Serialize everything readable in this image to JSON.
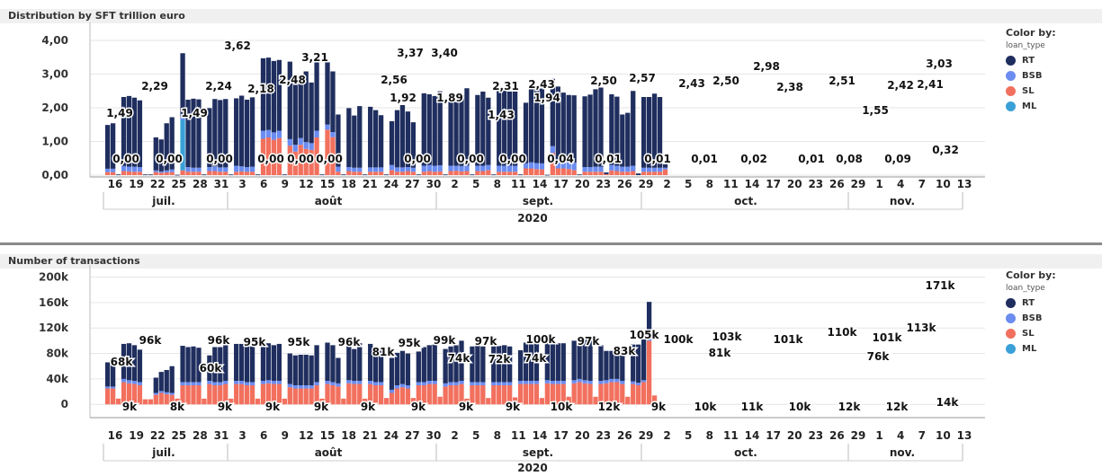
{
  "legend": {
    "title": "Color by:",
    "subtitle": "loan_type",
    "items": [
      {
        "name": "RT",
        "color": "#1f2e5e"
      },
      {
        "name": "BSB",
        "color": "#6b8cf0"
      },
      {
        "name": "SL",
        "color": "#f2705e"
      },
      {
        "name": "ML",
        "color": "#3aa0d8"
      }
    ]
  },
  "chart_data": [
    {
      "type": "bar",
      "title": "Distribution by SFT trillion euro",
      "stacked": true,
      "ylim": [
        0,
        4.4
      ],
      "yticks": [
        "4,00",
        "3,00",
        "2,00",
        "1,00",
        "0,00"
      ],
      "ytick_values": [
        4,
        3,
        2,
        1,
        0
      ],
      "grid": true,
      "legend_position": "right",
      "xticks": [
        "16",
        "19",
        "22",
        "25",
        "28",
        "31",
        "3",
        "6",
        "9",
        "12",
        "15",
        "18",
        "21",
        "24",
        "27",
        "30",
        "2",
        "5",
        "8",
        "11",
        "14",
        "17",
        "20",
        "23",
        "26",
        "29",
        "2",
        "5",
        "8",
        "11",
        "14",
        "17",
        "20",
        "23",
        "26",
        "29",
        "1",
        "4",
        "7",
        "10",
        "13"
      ],
      "months": [
        "juil.",
        "août",
        "sept.",
        "oct.",
        "nov."
      ],
      "year": "2020",
      "annotations": [
        "1,49",
        "0,00",
        "2,29",
        "0,00",
        "1,49",
        "2,24",
        "0,00",
        "3,62",
        "2,18",
        "0,00",
        "2,48",
        "0,00",
        "3,21",
        "0,00",
        "2,56",
        "1,92",
        "3,37",
        "0,00",
        "3,40",
        "1,89",
        "0,00",
        "2,31",
        "1,43",
        "0,00",
        "2,43",
        "1,94",
        "0,04",
        "2,50",
        "0,01",
        "2,57",
        "0,01",
        "2,43",
        "0,01",
        "2,50",
        "0,02",
        "2,98",
        "2,38",
        "0,01",
        "2,51",
        "0,08",
        "1,55",
        "2,42",
        "0,09",
        "2,41",
        "3,03",
        "0,32"
      ],
      "series": [
        {
          "name": "RT",
          "values": [
            1.3,
            1.35,
            0.02,
            2.05,
            2.1,
            2.05,
            1.98,
            0.02,
            0.02,
            0.98,
            0.95,
            1.4,
            1.55,
            0.01,
            1.88,
            2.0,
            2.05,
            2.03,
            0.02,
            1.75,
            2.0,
            2.0,
            2.03,
            0.02,
            2.0,
            2.1,
            2.0,
            2.06,
            0.02,
            2.15,
            2.15,
            2.12,
            2.1,
            0.02,
            2.3,
            1.95,
            1.85,
            2.1,
            1.8,
            2.03,
            0.02,
            1.85,
            1.8,
            1.55,
            0.02,
            1.75,
            1.55,
            1.83,
            0.02,
            1.8,
            1.7,
            1.55,
            0.02,
            1.3,
            1.7,
            1.85,
            1.65,
            1.35,
            0.02,
            2.15,
            2.1,
            2.07,
            2.2,
            0.02,
            2.1,
            2.0,
            2.1,
            2.3,
            0.02,
            2.1,
            2.2,
            2.0,
            0.02,
            2.25,
            2.25,
            2.2,
            2.2,
            0.02,
            1.8,
            2.25,
            2.2,
            2.22,
            0.01,
            2.0,
            2.23,
            2.05,
            2.0,
            2.0,
            0.02,
            2.1,
            2.15,
            2.3,
            2.35,
            0.05,
            2.1,
            2.05,
            1.55,
            1.6,
            2.22,
            0.05,
            2.1,
            2.1,
            2.2,
            2.1,
            0.1
          ]
        },
        {
          "name": "BSB",
          "values": [
            0.1,
            0.1,
            0.0,
            0.15,
            0.14,
            0.15,
            0.14,
            0.0,
            0.0,
            0.05,
            0.04,
            0.06,
            0.08,
            0.0,
            0.1,
            0.14,
            0.12,
            0.12,
            0.0,
            0.12,
            0.14,
            0.13,
            0.13,
            0.0,
            0.18,
            0.15,
            0.14,
            0.15,
            0.0,
            0.24,
            0.22,
            0.22,
            0.22,
            0.0,
            0.2,
            0.2,
            0.2,
            0.2,
            0.2,
            0.2,
            0.0,
            0.15,
            0.15,
            0.15,
            0.0,
            0.12,
            0.12,
            0.12,
            0.0,
            0.13,
            0.13,
            0.13,
            0.0,
            0.15,
            0.13,
            0.13,
            0.12,
            0.12,
            0.0,
            0.18,
            0.18,
            0.18,
            0.18,
            0.0,
            0.16,
            0.15,
            0.16,
            0.16,
            0.0,
            0.16,
            0.16,
            0.15,
            0.0,
            0.18,
            0.18,
            0.18,
            0.18,
            0.0,
            0.15,
            0.18,
            0.18,
            0.18,
            0.0,
            0.2,
            0.2,
            0.2,
            0.2,
            0.22,
            0.0,
            0.14,
            0.14,
            0.15,
            0.15,
            0.0,
            0.16,
            0.16,
            0.15,
            0.15,
            0.16,
            0.0,
            0.12,
            0.12,
            0.12,
            0.12,
            0.05
          ]
        },
        {
          "name": "SL",
          "values": [
            0.09,
            0.09,
            0.0,
            0.12,
            0.11,
            0.1,
            0.1,
            0.0,
            0.0,
            0.09,
            0.07,
            0.08,
            0.09,
            0.0,
            0.14,
            0.1,
            0.1,
            0.1,
            0.0,
            0.12,
            0.12,
            0.1,
            0.1,
            0.0,
            0.1,
            0.11,
            0.1,
            0.1,
            0.0,
            1.08,
            1.12,
            1.05,
            1.1,
            0.0,
            0.87,
            0.7,
            0.9,
            0.78,
            0.75,
            1.12,
            0.0,
            1.35,
            1.13,
            0.1,
            0.0,
            0.12,
            0.1,
            0.1,
            0.0,
            0.1,
            0.1,
            0.1,
            0.0,
            0.15,
            0.1,
            0.1,
            0.12,
            0.1,
            0.0,
            0.1,
            0.12,
            0.1,
            0.11,
            0.0,
            0.12,
            0.13,
            0.11,
            0.12,
            0.0,
            0.12,
            0.12,
            0.15,
            0.0,
            0.1,
            0.1,
            0.1,
            0.1,
            0.0,
            0.2,
            0.2,
            0.18,
            0.17,
            0.0,
            0.66,
            0.2,
            0.2,
            0.18,
            0.15,
            0.0,
            0.1,
            0.1,
            0.1,
            0.1,
            0.03,
            0.14,
            0.12,
            0.1,
            0.1,
            0.12,
            0.0,
            0.1,
            0.1,
            0.1,
            0.1,
            0.17
          ]
        },
        {
          "name": "ML",
          "values": [
            0,
            0,
            0,
            0,
            0,
            0,
            0,
            0,
            0,
            0,
            0,
            0,
            0,
            0,
            1.5,
            0,
            0,
            0,
            0,
            0,
            0,
            0,
            0,
            0,
            0,
            0,
            0,
            0,
            0,
            0,
            0,
            0,
            0,
            0,
            0,
            0,
            0,
            0,
            0,
            0,
            0,
            0,
            0,
            0,
            0,
            0,
            0,
            0,
            0,
            0,
            0,
            0,
            0,
            0,
            0,
            0,
            0,
            0,
            0,
            0,
            0,
            0,
            0,
            0,
            0,
            0,
            0,
            0,
            0,
            0,
            0,
            0,
            0,
            0,
            0,
            0,
            0,
            0,
            0,
            0,
            0,
            0,
            0,
            0,
            0,
            0,
            0,
            0,
            0,
            0,
            0,
            0,
            0,
            0,
            0,
            0,
            0,
            0,
            0,
            0,
            0,
            0,
            0,
            0,
            0,
            0
          ]
        }
      ]
    },
    {
      "type": "bar",
      "title": "Number of transactions",
      "stacked": true,
      "ylim": [
        -18000,
        212000
      ],
      "yticks": [
        "200k",
        "160k",
        "120k",
        "80k",
        "40k",
        "0"
      ],
      "ytick_values": [
        200000,
        160000,
        120000,
        80000,
        40000,
        0
      ],
      "grid": true,
      "legend_position": "right",
      "xticks": [
        "16",
        "19",
        "22",
        "25",
        "28",
        "31",
        "3",
        "6",
        "9",
        "12",
        "15",
        "18",
        "21",
        "24",
        "27",
        "30",
        "2",
        "5",
        "8",
        "11",
        "14",
        "17",
        "20",
        "23",
        "26",
        "29",
        "2",
        "5",
        "8",
        "11",
        "14",
        "17",
        "20",
        "23",
        "26",
        "29",
        "1",
        "4",
        "7",
        "10",
        "13"
      ],
      "months": [
        "juil.",
        "août",
        "sept.",
        "oct.",
        "nov."
      ],
      "year": "2020",
      "annotations": [
        "68k",
        "9k",
        "96k",
        "8k",
        "60k",
        "96k",
        "9k",
        "95k",
        "9k",
        "95k",
        "9k",
        "96k",
        "9k",
        "81k",
        "95k",
        "9k",
        "99k",
        "74k",
        "9k",
        "97k",
        "72k",
        "9k",
        "74k",
        "100k",
        "10k",
        "97k",
        "12k",
        "83k",
        "105k",
        "9k",
        "100k",
        "10k",
        "81k",
        "103k",
        "11k",
        "101k",
        "10k",
        "110k",
        "12k",
        "76k",
        "101k",
        "12k",
        "113k",
        "171k",
        "14k"
      ],
      "series": [
        {
          "name": "RT",
          "values": [
            38000,
            40000,
            0,
            55000,
            58000,
            56000,
            51000,
            0,
            0,
            24000,
            30000,
            35000,
            42000,
            0,
            57000,
            55000,
            56000,
            54000,
            0,
            40000,
            55000,
            55000,
            56000,
            0,
            58000,
            58000,
            57000,
            56000,
            0,
            57000,
            58000,
            56000,
            58000,
            0,
            48000,
            47000,
            48000,
            48000,
            47000,
            58000,
            0,
            60000,
            58000,
            40000,
            0,
            58000,
            50000,
            59000,
            0,
            58000,
            51000,
            53000,
            0,
            50000,
            51000,
            52000,
            50000,
            0,
            48000,
            55000,
            56000,
            57000,
            0,
            54000,
            56000,
            59000,
            63000,
            0,
            56000,
            57000,
            56000,
            0,
            56000,
            57000,
            58000,
            56000,
            0,
            48000,
            60000,
            60000,
            61000,
            0,
            58000,
            62000,
            59000,
            59000,
            0,
            62000,
            64000,
            65000,
            67000,
            0,
            56000,
            46000,
            44000,
            46000,
            50000,
            0,
            58000,
            60000,
            64000,
            58000,
            0
          ]
        },
        {
          "name": "BSB",
          "values": [
            3000,
            3000,
            0,
            5000,
            5000,
            5000,
            5000,
            0,
            0,
            3000,
            3000,
            3000,
            3000,
            0,
            5000,
            5000,
            5000,
            5000,
            0,
            5000,
            5000,
            5000,
            5000,
            0,
            5000,
            5000,
            5000,
            5000,
            0,
            5000,
            5000,
            5000,
            5000,
            0,
            5000,
            5000,
            5000,
            5000,
            5000,
            5000,
            0,
            5000,
            5000,
            5000,
            0,
            5000,
            5000,
            5000,
            0,
            5000,
            5000,
            5000,
            0,
            5000,
            5000,
            5000,
            5000,
            0,
            5000,
            5000,
            5000,
            5000,
            0,
            5000,
            5000,
            5000,
            5000,
            0,
            5000,
            5000,
            5000,
            0,
            5000,
            5000,
            5000,
            5000,
            0,
            5000,
            5000,
            5000,
            5000,
            0,
            5000,
            5000,
            5000,
            5000,
            0,
            5000,
            5000,
            5000,
            5000,
            0,
            5000,
            5000,
            5000,
            5000,
            5000,
            0,
            4000,
            4000,
            3000,
            3000,
            0
          ]
        },
        {
          "name": "SL",
          "values": [
            25000,
            25000,
            9000,
            35000,
            33000,
            32000,
            30000,
            8000,
            8000,
            15000,
            18000,
            16000,
            15000,
            9000,
            30000,
            30000,
            30000,
            30000,
            9000,
            32000,
            30000,
            30000,
            32000,
            9000,
            32000,
            32000,
            30000,
            30000,
            9000,
            32000,
            33000,
            32000,
            32000,
            9000,
            27000,
            25000,
            25000,
            25000,
            25000,
            30000,
            9000,
            32000,
            30000,
            28000,
            9000,
            33000,
            32000,
            32000,
            9000,
            32000,
            30000,
            30000,
            10000,
            18000,
            25000,
            27000,
            25000,
            10000,
            30000,
            30000,
            32000,
            32000,
            12000,
            28000,
            30000,
            30000,
            32000,
            9000,
            30000,
            30000,
            30000,
            10000,
            30000,
            30000,
            30000,
            30000,
            11000,
            32000,
            32000,
            32000,
            32000,
            10000,
            33000,
            32000,
            32000,
            32000,
            12000,
            33000,
            35000,
            33000,
            32000,
            12000,
            32000,
            33000,
            35000,
            35000,
            32000,
            12000,
            32000,
            30000,
            35000,
            100000,
            14000
          ]
        },
        {
          "name": "ML",
          "values": [
            0,
            0,
            0,
            0,
            0,
            0,
            0,
            0,
            0,
            0,
            0,
            0,
            0,
            0,
            0,
            0,
            0,
            0,
            0,
            0,
            0,
            0,
            0,
            0,
            0,
            0,
            0,
            0,
            0,
            0,
            0,
            0,
            0,
            0,
            0,
            0,
            0,
            0,
            0,
            0,
            0,
            0,
            0,
            0,
            0,
            0,
            0,
            0,
            0,
            0,
            0,
            0,
            0,
            0,
            0,
            0,
            0,
            0,
            0,
            0,
            0,
            0,
            0,
            0,
            0,
            0,
            0,
            0,
            0,
            0,
            0,
            0,
            0,
            0,
            0,
            0,
            0,
            0,
            0,
            0,
            0,
            0,
            0,
            0,
            0,
            0,
            0,
            0,
            0,
            0,
            0,
            0,
            0,
            0,
            0,
            0,
            0,
            0,
            0,
            0,
            0
          ]
        }
      ]
    }
  ]
}
